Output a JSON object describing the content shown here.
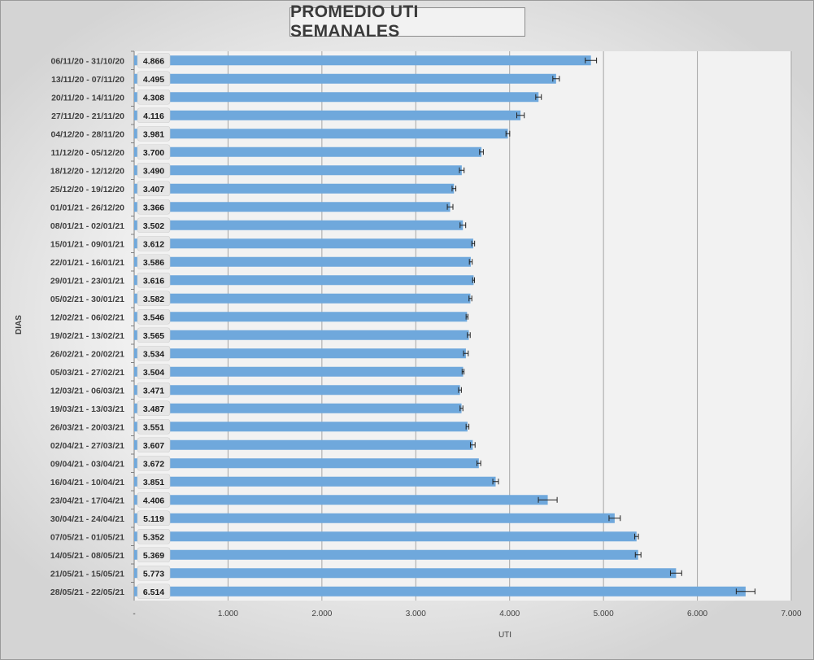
{
  "chart_data": {
    "type": "bar",
    "orientation": "horizontal",
    "title": "PROMEDIO UTI SEMANALES",
    "xlabel": "UTI",
    "ylabel": "DIAS",
    "xlim": [
      0,
      7000
    ],
    "x_ticks": [
      "-",
      "1.000",
      "2.000",
      "3.000",
      "4.000",
      "5.000",
      "6.000",
      "7.000"
    ],
    "grid": true,
    "legend": "none",
    "bar_color": "#6fa8dc",
    "error_bars": true,
    "categories": [
      "06/11/20 - 31/10/20",
      "13/11/20 - 07/11/20",
      "20/11/20 - 14/11/20",
      "27/11/20 - 21/11/20",
      "04/12/20 - 28/11/20",
      "11/12/20 - 05/12/20",
      "18/12/20 - 12/12/20",
      "25/12/20 - 19/12/20",
      "01/01/21 - 26/12/20",
      "08/01/21 - 02/01/21",
      "15/01/21 - 09/01/21",
      "22/01/21 - 16/01/21",
      "29/01/21 - 23/01/21",
      "05/02/21 - 30/01/21",
      "12/02/21 - 06/02/21",
      "19/02/21 - 13/02/21",
      "26/02/21 - 20/02/21",
      "05/03/21 - 27/02/21",
      "12/03/21 - 06/03/21",
      "19/03/21 - 13/03/21",
      "26/03/21 - 20/03/21",
      "02/04/21 - 27/03/21",
      "09/04/21 - 03/04/21",
      "16/04/21 - 10/04/21",
      "23/04/21 - 17/04/21",
      "30/04/21 - 24/04/21",
      "07/05/21 - 01/05/21",
      "14/05/21 - 08/05/21",
      "21/05/21 - 15/05/21",
      "28/05/21 - 22/05/21"
    ],
    "values": [
      4866,
      4495,
      4308,
      4116,
      3981,
      3700,
      3490,
      3407,
      3366,
      3502,
      3612,
      3586,
      3616,
      3582,
      3546,
      3565,
      3534,
      3504,
      3471,
      3487,
      3551,
      3607,
      3672,
      3851,
      4406,
      5119,
      5352,
      5369,
      5773,
      6514
    ],
    "value_labels": [
      "4.866",
      "4.495",
      "4.308",
      "4.116",
      "3.981",
      "3.700",
      "3.490",
      "3.407",
      "3.366",
      "3.502",
      "3.612",
      "3.586",
      "3.616",
      "3.582",
      "3.546",
      "3.565",
      "3.534",
      "3.504",
      "3.471",
      "3.487",
      "3.551",
      "3.607",
      "3.672",
      "3.851",
      "4.406",
      "5.119",
      "5.352",
      "5.369",
      "5.773",
      "6.514"
    ],
    "errors": [
      60,
      35,
      30,
      40,
      20,
      20,
      25,
      20,
      30,
      30,
      15,
      15,
      10,
      15,
      10,
      15,
      25,
      10,
      15,
      15,
      15,
      25,
      20,
      30,
      100,
      60,
      20,
      30,
      60,
      100
    ]
  }
}
